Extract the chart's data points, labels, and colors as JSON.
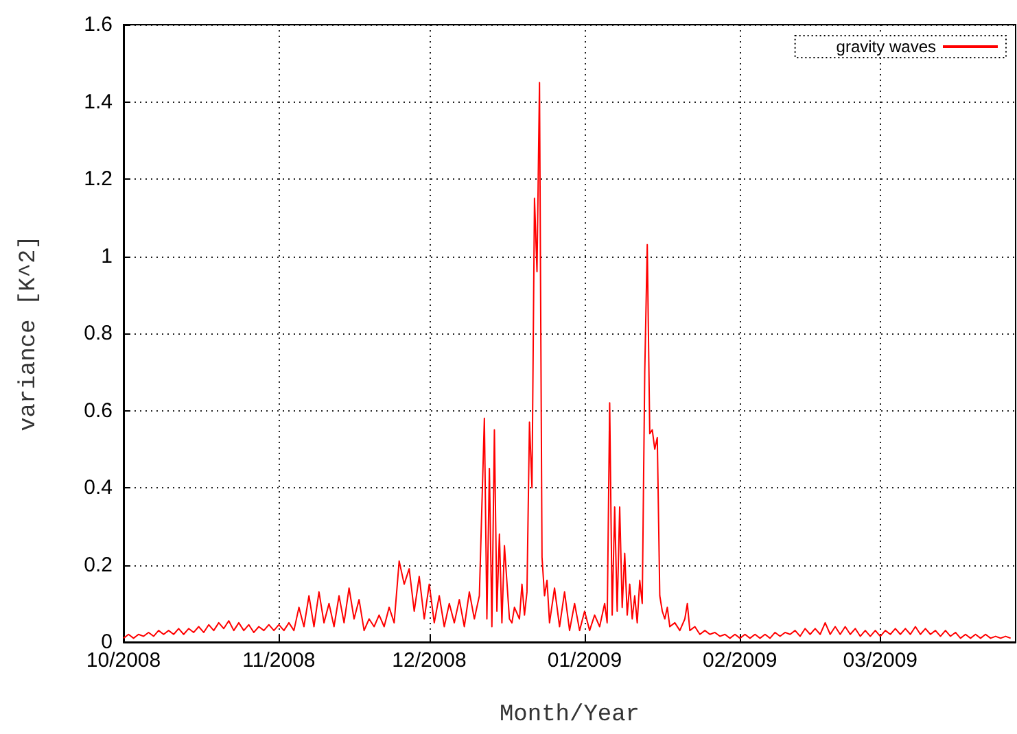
{
  "chart_data": {
    "type": "line",
    "xlabel": "Month/Year",
    "ylabel": "variance [K^2]",
    "x": [
      "2008-10-01",
      "2008-10-02",
      "2008-10-03",
      "2008-10-04",
      "2008-10-05",
      "2008-10-06",
      "2008-10-07",
      "2008-10-08",
      "2008-10-09",
      "2008-10-10",
      "2008-10-11",
      "2008-10-12",
      "2008-10-13",
      "2008-10-14",
      "2008-10-15",
      "2008-10-16",
      "2008-10-17",
      "2008-10-18",
      "2008-10-19",
      "2008-10-20",
      "2008-10-21",
      "2008-10-22",
      "2008-10-23",
      "2008-10-24",
      "2008-10-25",
      "2008-10-26",
      "2008-10-27",
      "2008-10-28",
      "2008-10-29",
      "2008-10-30",
      "2008-10-31",
      "2008-11-01",
      "2008-11-02",
      "2008-11-03",
      "2008-11-04",
      "2008-11-05",
      "2008-11-06",
      "2008-11-07",
      "2008-11-08",
      "2008-11-09",
      "2008-11-10",
      "2008-11-11",
      "2008-11-12",
      "2008-11-13",
      "2008-11-14",
      "2008-11-15",
      "2008-11-16",
      "2008-11-17",
      "2008-11-18",
      "2008-11-19",
      "2008-11-20",
      "2008-11-21",
      "2008-11-22",
      "2008-11-23",
      "2008-11-24",
      "2008-11-25",
      "2008-11-26",
      "2008-11-27",
      "2008-11-28",
      "2008-11-29",
      "2008-11-30",
      "2008-12-01",
      "2008-12-02",
      "2008-12-03",
      "2008-12-04",
      "2008-12-05",
      "2008-12-06",
      "2008-12-07",
      "2008-12-08",
      "2008-12-09",
      "2008-12-10",
      "2008-12-11",
      "2008-12-12",
      "2008-12-12T12:00",
      "2008-12-13",
      "2008-12-13T12:00",
      "2008-12-14",
      "2008-12-14T12:00",
      "2008-12-15",
      "2008-12-15T12:00",
      "2008-12-16",
      "2008-12-17",
      "2008-12-17T12:00",
      "2008-12-18",
      "2008-12-19",
      "2008-12-19T12:00",
      "2008-12-20",
      "2008-12-20T12:00",
      "2008-12-21",
      "2008-12-21T12:00",
      "2008-12-22",
      "2008-12-22T12:00",
      "2008-12-23",
      "2008-12-23T12:00",
      "2008-12-24",
      "2008-12-24T12:00",
      "2008-12-25",
      "2008-12-26",
      "2008-12-27",
      "2008-12-28",
      "2008-12-29",
      "2008-12-30",
      "2008-12-31",
      "2009-01-01",
      "2009-01-02",
      "2009-01-03",
      "2009-01-04",
      "2009-01-05",
      "2009-01-05T12:00",
      "2009-01-06",
      "2009-01-06T12:00",
      "2009-01-07",
      "2009-01-07T12:00",
      "2009-01-08",
      "2009-01-08T12:00",
      "2009-01-09",
      "2009-01-09T12:00",
      "2009-01-10",
      "2009-01-10T12:00",
      "2009-01-11",
      "2009-01-11T12:00",
      "2009-01-12",
      "2009-01-12T12:00",
      "2009-01-13",
      "2009-01-13T12:00",
      "2009-01-14",
      "2009-01-14T12:00",
      "2009-01-15",
      "2009-01-15T12:00",
      "2009-01-16",
      "2009-01-16T12:00",
      "2009-01-17",
      "2009-01-17T12:00",
      "2009-01-18",
      "2009-01-19",
      "2009-01-20",
      "2009-01-21",
      "2009-01-21T12:00",
      "2009-01-22",
      "2009-01-23",
      "2009-01-24",
      "2009-01-25",
      "2009-01-26",
      "2009-01-27",
      "2009-01-28",
      "2009-01-29",
      "2009-01-30",
      "2009-01-31",
      "2009-02-01",
      "2009-02-02",
      "2009-02-03",
      "2009-02-04",
      "2009-02-05",
      "2009-02-06",
      "2009-02-07",
      "2009-02-08",
      "2009-02-09",
      "2009-02-10",
      "2009-02-11",
      "2009-02-12",
      "2009-02-13",
      "2009-02-14",
      "2009-02-15",
      "2009-02-16",
      "2009-02-17",
      "2009-02-18",
      "2009-02-19",
      "2009-02-20",
      "2009-02-21",
      "2009-02-22",
      "2009-02-23",
      "2009-02-24",
      "2009-02-25",
      "2009-02-26",
      "2009-02-27",
      "2009-02-28",
      "2009-03-01",
      "2009-03-02",
      "2009-03-03",
      "2009-03-04",
      "2009-03-05",
      "2009-03-06",
      "2009-03-07",
      "2009-03-08",
      "2009-03-09",
      "2009-03-10",
      "2009-03-11",
      "2009-03-12",
      "2009-03-13",
      "2009-03-14",
      "2009-03-15",
      "2009-03-16",
      "2009-03-17",
      "2009-03-18",
      "2009-03-19",
      "2009-03-20",
      "2009-03-21",
      "2009-03-22",
      "2009-03-23",
      "2009-03-24",
      "2009-03-25",
      "2009-03-26",
      "2009-03-27"
    ],
    "series": [
      {
        "name": "gravity waves",
        "color": "#ff0000",
        "values": [
          0.01,
          0.02,
          0.01,
          0.02,
          0.015,
          0.025,
          0.015,
          0.03,
          0.02,
          0.03,
          0.02,
          0.035,
          0.02,
          0.035,
          0.025,
          0.04,
          0.025,
          0.045,
          0.03,
          0.05,
          0.035,
          0.055,
          0.03,
          0.05,
          0.03,
          0.045,
          0.025,
          0.04,
          0.03,
          0.045,
          0.03,
          0.045,
          0.03,
          0.05,
          0.03,
          0.09,
          0.04,
          0.12,
          0.04,
          0.13,
          0.05,
          0.1,
          0.04,
          0.12,
          0.05,
          0.14,
          0.06,
          0.11,
          0.03,
          0.06,
          0.04,
          0.07,
          0.04,
          0.09,
          0.05,
          0.21,
          0.15,
          0.19,
          0.08,
          0.17,
          0.06,
          0.15,
          0.05,
          0.12,
          0.04,
          0.1,
          0.05,
          0.11,
          0.04,
          0.13,
          0.06,
          0.12,
          0.58,
          0.06,
          0.45,
          0.04,
          0.55,
          0.08,
          0.28,
          0.05,
          0.25,
          0.06,
          0.05,
          0.09,
          0.06,
          0.15,
          0.07,
          0.13,
          0.57,
          0.4,
          1.15,
          0.96,
          1.45,
          0.22,
          0.12,
          0.16,
          0.05,
          0.14,
          0.04,
          0.13,
          0.03,
          0.1,
          0.03,
          0.08,
          0.03,
          0.07,
          0.04,
          0.1,
          0.05,
          0.62,
          0.07,
          0.35,
          0.08,
          0.35,
          0.09,
          0.23,
          0.07,
          0.15,
          0.06,
          0.12,
          0.05,
          0.16,
          0.1,
          0.7,
          1.03,
          0.54,
          0.55,
          0.5,
          0.53,
          0.12,
          0.08,
          0.06,
          0.09,
          0.04,
          0.05,
          0.03,
          0.06,
          0.1,
          0.03,
          0.04,
          0.02,
          0.03,
          0.02,
          0.025,
          0.015,
          0.02,
          0.01,
          0.02,
          0.01,
          0.02,
          0.01,
          0.02,
          0.01,
          0.02,
          0.01,
          0.025,
          0.015,
          0.025,
          0.02,
          0.03,
          0.015,
          0.035,
          0.02,
          0.035,
          0.02,
          0.05,
          0.02,
          0.04,
          0.02,
          0.04,
          0.02,
          0.035,
          0.015,
          0.03,
          0.015,
          0.03,
          0.015,
          0.03,
          0.02,
          0.035,
          0.02,
          0.035,
          0.02,
          0.04,
          0.02,
          0.035,
          0.02,
          0.03,
          0.015,
          0.03,
          0.015,
          0.025,
          0.01,
          0.02,
          0.01,
          0.02,
          0.01,
          0.02,
          0.01,
          0.015,
          0.01,
          0.015,
          0.01
        ]
      }
    ],
    "xlim": [
      "2008-10-01",
      "2009-03-28"
    ],
    "xticks": [
      {
        "value": "2008-10-01",
        "label": "10/2008"
      },
      {
        "value": "2008-11-01",
        "label": "11/2008"
      },
      {
        "value": "2008-12-01",
        "label": "12/2008"
      },
      {
        "value": "2009-01-01",
        "label": "01/2009"
      },
      {
        "value": "2009-02-01",
        "label": "02/2009"
      },
      {
        "value": "2009-03-01",
        "label": "03/2009"
      }
    ],
    "ylim": [
      0,
      1.6
    ],
    "yticks": [
      0,
      0.2,
      0.4,
      0.6,
      0.8,
      1,
      1.2,
      1.4,
      1.6
    ],
    "grid": true,
    "legend": "top right",
    "marker": "none",
    "line_style": "solid"
  }
}
